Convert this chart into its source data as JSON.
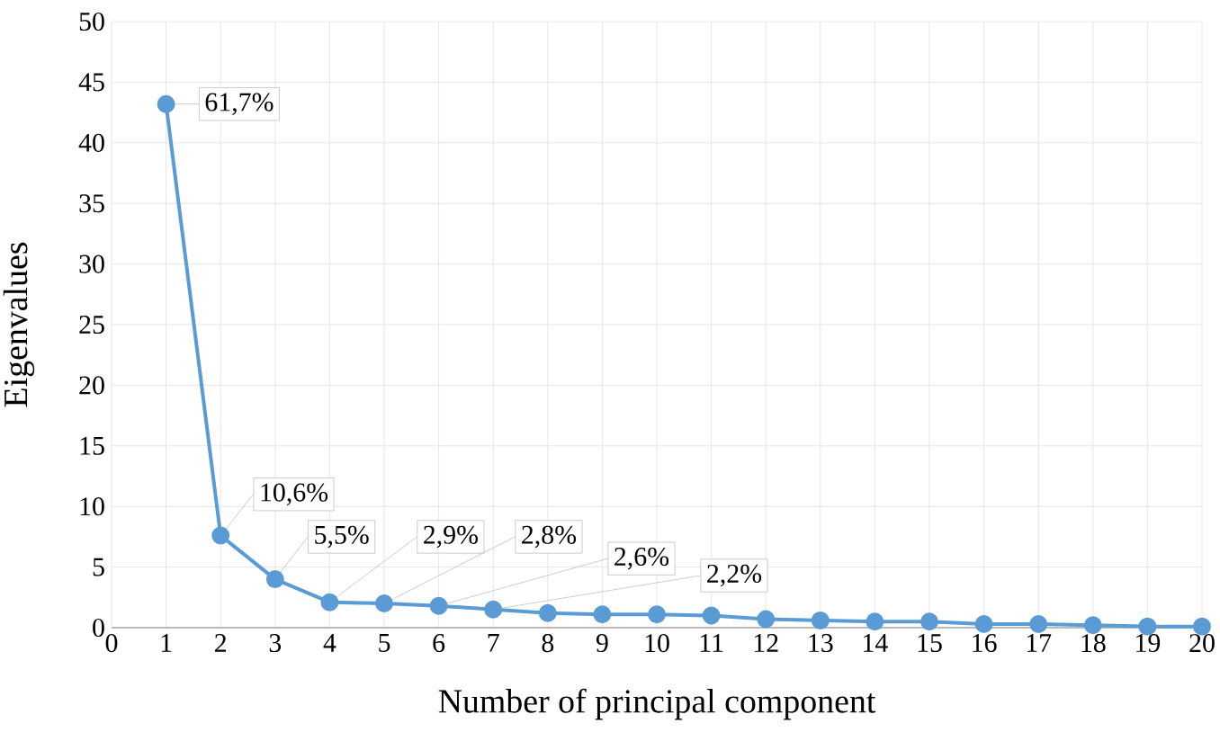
{
  "chart_data": {
    "type": "line",
    "xlabel": "Number of principal component",
    "ylabel": "Eigenvalues",
    "x": [
      1,
      2,
      3,
      4,
      5,
      6,
      7,
      8,
      9,
      10,
      11,
      12,
      13,
      14,
      15,
      16,
      17,
      18,
      19,
      20
    ],
    "values": [
      43.2,
      7.6,
      4.0,
      2.1,
      2.0,
      1.8,
      1.5,
      1.2,
      1.1,
      1.1,
      1.0,
      0.7,
      0.6,
      0.5,
      0.5,
      0.3,
      0.3,
      0.2,
      0.1,
      0.1
    ],
    "annotations": [
      {
        "text": "61,7%",
        "x": 1,
        "y": 43.2
      },
      {
        "text": "10,6%",
        "x": 2,
        "y": 7.6
      },
      {
        "text": "5,5%",
        "x": 3,
        "y": 4.0
      },
      {
        "text": "2,9%",
        "x": 4,
        "y": 2.1
      },
      {
        "text": "2,8%",
        "x": 5,
        "y": 2.0
      },
      {
        "text": "2,6%",
        "x": 6,
        "y": 1.8
      },
      {
        "text": "2,2%",
        "x": 7,
        "y": 1.5
      }
    ],
    "color": "#5b9bd5",
    "marker": "circle",
    "grid": true,
    "xlim": [
      0,
      20
    ],
    "xticks": [
      0,
      1,
      2,
      3,
      4,
      5,
      6,
      7,
      8,
      9,
      10,
      11,
      12,
      13,
      14,
      15,
      16,
      17,
      18,
      19,
      20
    ],
    "ylim": [
      0,
      50
    ],
    "yticks": [
      0,
      5,
      10,
      15,
      20,
      25,
      30,
      35,
      40,
      45,
      50
    ]
  }
}
